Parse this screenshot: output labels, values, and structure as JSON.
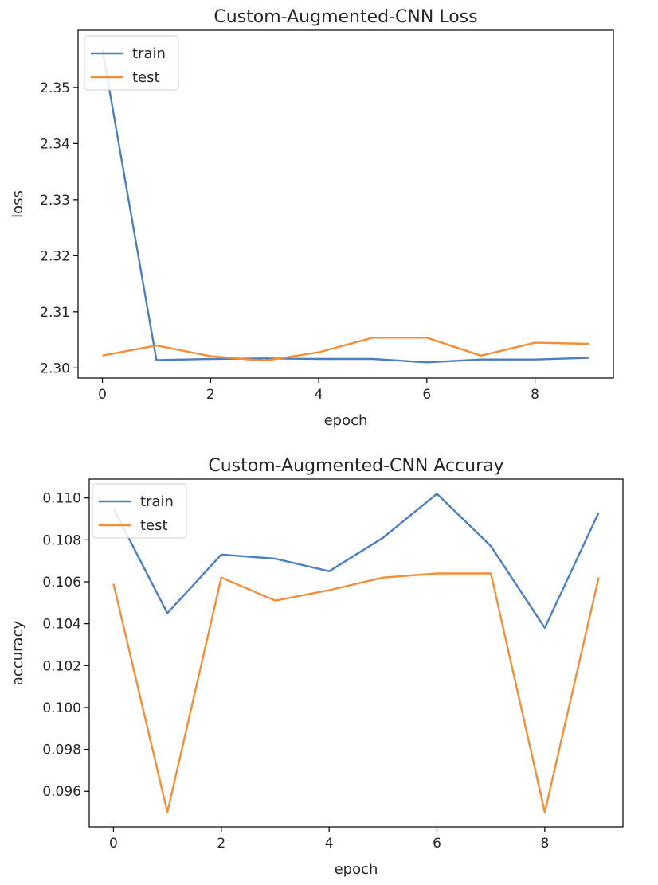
{
  "chart_data": [
    {
      "type": "line",
      "title": "Custom-Augmented-CNN Loss",
      "xlabel": "epoch",
      "ylabel": "loss",
      "x": [
        0,
        1,
        2,
        3,
        4,
        5,
        6,
        7,
        8,
        9
      ],
      "series": [
        {
          "name": "train",
          "color": "#4c7fbf",
          "values": [
            2.3568,
            2.3014,
            2.3016,
            2.3017,
            2.3016,
            2.3016,
            2.301,
            2.3015,
            2.3015,
            2.3018
          ]
        },
        {
          "name": "test",
          "color": "#f28e3a",
          "values": [
            2.3022,
            2.304,
            2.3021,
            2.3013,
            2.3028,
            2.3054,
            2.3054,
            2.3022,
            2.3045,
            2.3043
          ]
        }
      ],
      "xlim": [
        -0.45,
        9.45
      ],
      "ylim": [
        2.2982,
        2.3602
      ],
      "xticks": [
        0,
        2,
        4,
        6,
        8
      ],
      "yticks": [
        2.3,
        2.31,
        2.32,
        2.33,
        2.34,
        2.35
      ],
      "ytick_labels": [
        "2.30",
        "2.31",
        "2.32",
        "2.33",
        "2.34",
        "2.35"
      ],
      "legend": "upper left",
      "grid": false
    },
    {
      "type": "line",
      "title": "Custom-Augmented-CNN Accuray",
      "xlabel": "epoch",
      "ylabel": "accuracy",
      "x": [
        0,
        1,
        2,
        3,
        4,
        5,
        6,
        7,
        8,
        9
      ],
      "series": [
        {
          "name": "train",
          "color": "#4c7fbf",
          "values": [
            0.1095,
            0.1045,
            0.1073,
            0.1071,
            0.1065,
            0.1081,
            0.1102,
            0.1077,
            0.1038,
            0.1093
          ]
        },
        {
          "name": "test",
          "color": "#f28e3a",
          "values": [
            0.1059,
            0.095,
            0.1062,
            0.1051,
            0.1056,
            0.1062,
            0.1064,
            0.1064,
            0.095,
            0.1062
          ]
        }
      ],
      "xlim": [
        -0.45,
        9.45
      ],
      "ylim": [
        0.0943,
        0.1109
      ],
      "xticks": [
        0,
        2,
        4,
        6,
        8
      ],
      "yticks": [
        0.096,
        0.098,
        0.1,
        0.102,
        0.104,
        0.106,
        0.108,
        0.11
      ],
      "ytick_labels": [
        "0.096",
        "0.098",
        "0.100",
        "0.102",
        "0.104",
        "0.106",
        "0.108",
        "0.110"
      ],
      "legend": "upper left",
      "grid": false
    }
  ]
}
